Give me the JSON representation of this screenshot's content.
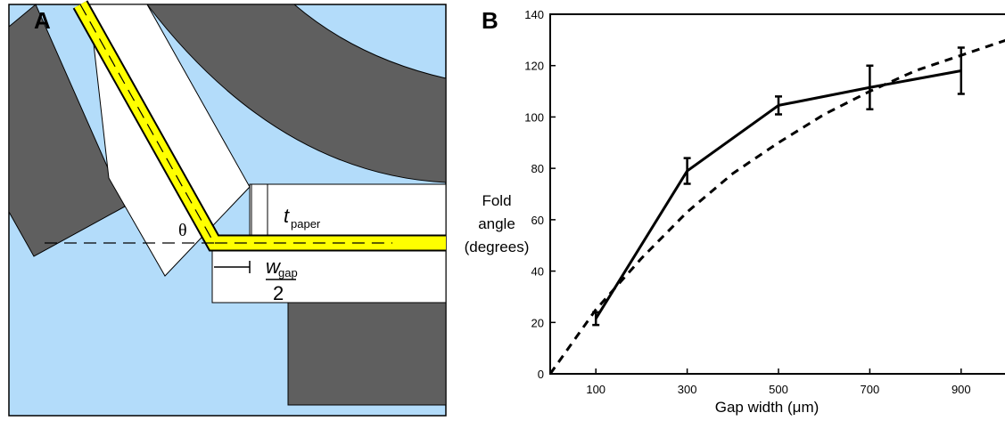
{
  "panel_a": {
    "label": "A",
    "angle_symbol": "θ",
    "thickness_symbol": "t",
    "thickness_subscript": "paper",
    "gap_symbol": "w",
    "gap_subscript": "gap",
    "gap_divisor": "2"
  },
  "chart_data": {
    "type": "line",
    "panel_label": "B",
    "xlabel": "Gap width (μm)",
    "ylabel": [
      "Fold",
      "angle",
      "(degrees)"
    ],
    "xlim": [
      0,
      1000
    ],
    "ylim": [
      0,
      140
    ],
    "xticks": [
      100,
      300,
      500,
      700,
      900
    ],
    "yticks": [
      0,
      20,
      40,
      60,
      80,
      100,
      120,
      140
    ],
    "series": [
      {
        "color": "#000000",
        "dash": false,
        "x": [
          100,
          300,
          500,
          700,
          900
        ],
        "values": [
          21.5,
          79,
          104.5,
          111.5,
          118
        ],
        "errors": [
          2.5,
          5,
          3.5,
          8.5,
          9
        ]
      },
      {
        "color": "#000000",
        "dash": true,
        "x": [
          0,
          100,
          200,
          300,
          400,
          500,
          600,
          700,
          800,
          900,
          1000
        ],
        "values": [
          0,
          25,
          45,
          63,
          78,
          90,
          101,
          110,
          118,
          124,
          130
        ]
      }
    ]
  }
}
